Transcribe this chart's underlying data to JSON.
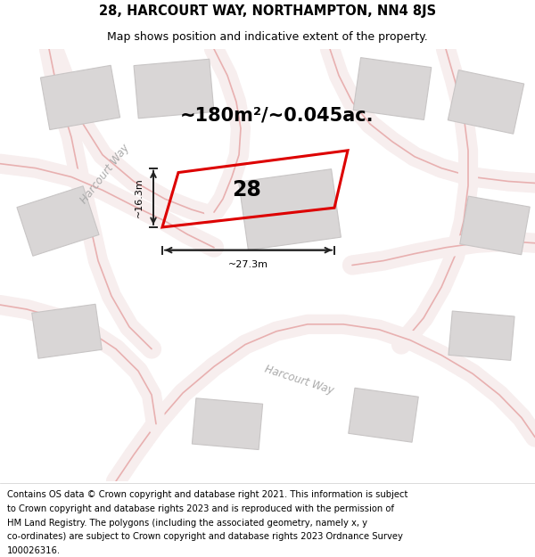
{
  "title": "28, HARCOURT WAY, NORTHAMPTON, NN4 8JS",
  "subtitle": "Map shows position and indicative extent of the property.",
  "area_text": "~180m²/~0.045ac.",
  "number_label": "28",
  "dim_width": "~27.3m",
  "dim_height": "~16.3m",
  "footer_lines": [
    "Contains OS data © Crown copyright and database right 2021. This information is subject",
    "to Crown copyright and database rights 2023 and is reproduced with the permission of",
    "HM Land Registry. The polygons (including the associated geometry, namely x, y",
    "co-ordinates) are subject to Crown copyright and database rights 2023 Ordnance Survey",
    "100026316."
  ],
  "map_bg": "#f2efef",
  "road_fill": "#f7eeee",
  "road_edge": "#e8b0b0",
  "building_fc": "#d9d6d6",
  "building_ec": "#c8c5c5",
  "plot_color": "#dd0000",
  "dim_color": "#222222",
  "label_color": "#aaaaaa",
  "title_fontsize": 10.5,
  "subtitle_fontsize": 9,
  "area_fontsize": 15,
  "number_fontsize": 17,
  "footer_fontsize": 7.2,
  "road_lw_fill": 16,
  "road_lw_edge": 1.2
}
